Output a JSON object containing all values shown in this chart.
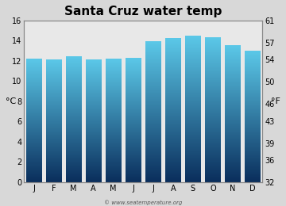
{
  "title": "Santa Cruz water temp",
  "months": [
    "J",
    "F",
    "M",
    "A",
    "M",
    "J",
    "J",
    "A",
    "S",
    "O",
    "N",
    "D"
  ],
  "values_c": [
    12.2,
    12.1,
    12.4,
    12.1,
    12.2,
    12.3,
    13.9,
    14.2,
    14.5,
    14.3,
    13.5,
    13.0
  ],
  "ylim_c": [
    0,
    16
  ],
  "yticks_c": [
    0,
    2,
    4,
    6,
    8,
    10,
    12,
    14,
    16
  ],
  "yticks_f": [
    32,
    36,
    39,
    43,
    46,
    50,
    54,
    57,
    61
  ],
  "ylabel_left": "°C",
  "ylabel_right": "°F",
  "bar_color_top": "#5bc8e8",
  "bar_color_bottom": "#0a2e5c",
  "bg_color": "#d8d8d8",
  "plot_bg_color": "#e8e8e8",
  "watermark": "© www.seatemperature.org",
  "title_fontsize": 11,
  "tick_fontsize": 7,
  "label_fontsize": 8
}
